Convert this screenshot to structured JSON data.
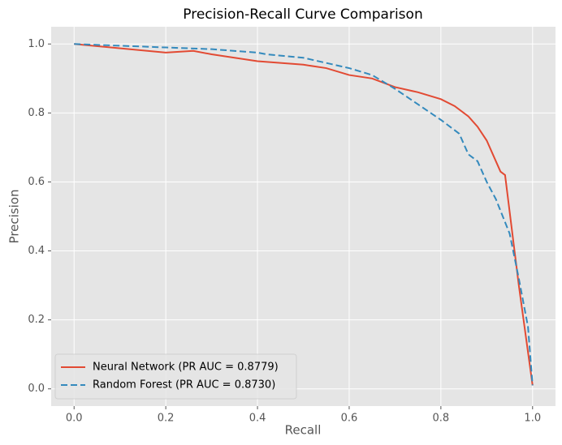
{
  "chart_data": {
    "type": "line",
    "title": "Precision-Recall Curve Comparison",
    "x_label": "Recall",
    "y_label": "Precision",
    "xlim": [
      -0.05,
      1.05
    ],
    "ylim": [
      -0.05,
      1.05
    ],
    "xticks": [
      {
        "value": 0,
        "label": "0.0"
      },
      0.2,
      0.4,
      0.6,
      0.8,
      {
        "value": 1,
        "label": "1.0"
      }
    ],
    "yticks": [
      {
        "value": 0,
        "label": "0.0"
      },
      0.2,
      0.4,
      0.6,
      0.8,
      {
        "value": 1,
        "label": "1.0"
      }
    ],
    "grid": true,
    "legend_position": "lower-left",
    "series": [
      {
        "name": "Neural Network (PR AUC = 0.8779)",
        "color": "#E24A33",
        "linestyle": "solid",
        "x": [
          0,
          0.2,
          0.26,
          0.3,
          0.35,
          0.4,
          0.45,
          0.5,
          0.55,
          0.6,
          0.65,
          0.7,
          0.75,
          0.8,
          0.83,
          0.86,
          0.88,
          0.9,
          0.92,
          0.93,
          0.94,
          0.97,
          1.0
        ],
        "values": [
          1.0,
          0.975,
          0.98,
          0.97,
          0.96,
          0.95,
          0.945,
          0.94,
          0.93,
          0.91,
          0.9,
          0.875,
          0.86,
          0.84,
          0.82,
          0.79,
          0.76,
          0.72,
          0.66,
          0.63,
          0.62,
          0.3,
          0.01
        ]
      },
      {
        "name": "Random Forest (PR AUC = 0.8730)",
        "color": "#348ABD",
        "linestyle": "dashed",
        "x": [
          0,
          0.2,
          0.3,
          0.4,
          0.42,
          0.5,
          0.55,
          0.6,
          0.65,
          0.7,
          0.75,
          0.8,
          0.84,
          0.86,
          0.88,
          0.9,
          0.92,
          0.95,
          0.97,
          0.99,
          1.0
        ],
        "values": [
          1.0,
          0.99,
          0.985,
          0.975,
          0.97,
          0.96,
          0.945,
          0.93,
          0.91,
          0.87,
          0.825,
          0.78,
          0.74,
          0.68,
          0.66,
          0.6,
          0.55,
          0.45,
          0.32,
          0.18,
          0.01
        ]
      }
    ]
  }
}
